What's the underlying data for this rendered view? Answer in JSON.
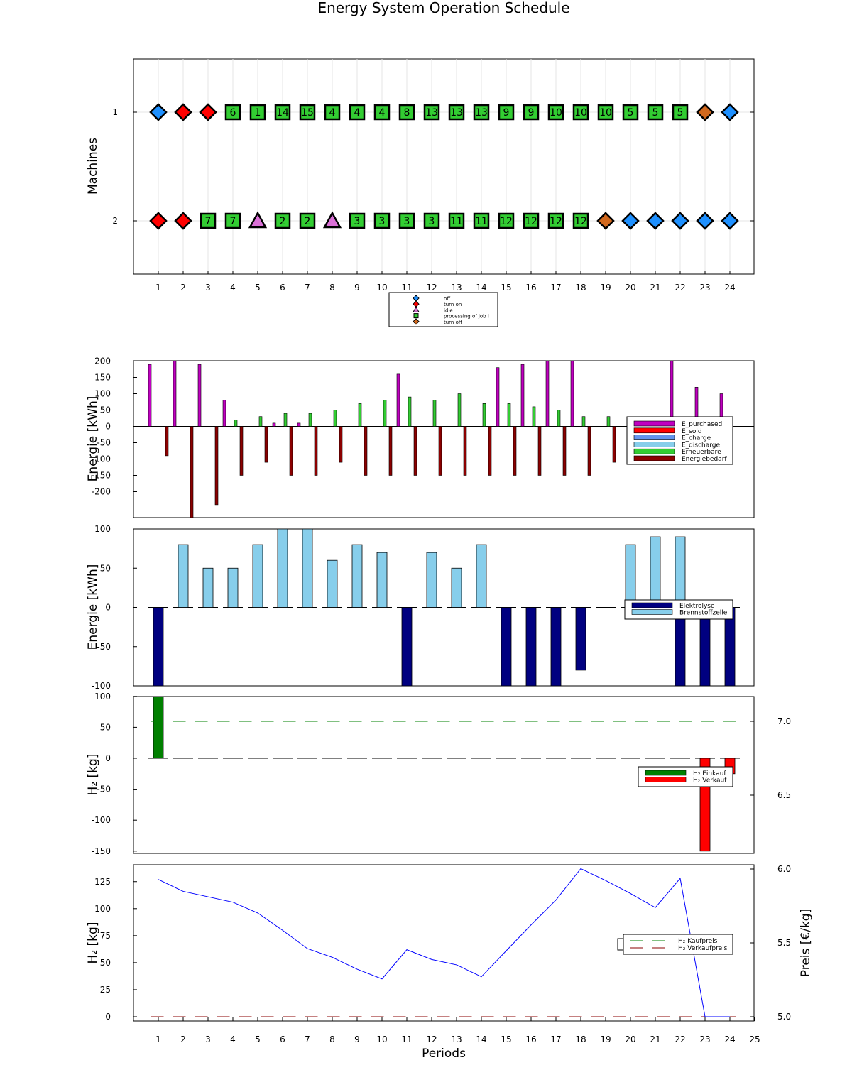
{
  "title": "Energy System Operation Schedule",
  "chart_data": [
    {
      "type": "scatter",
      "ylabel": "Machines",
      "x": [
        1,
        2,
        3,
        4,
        5,
        6,
        7,
        8,
        9,
        10,
        11,
        12,
        13,
        14,
        15,
        16,
        17,
        18,
        19,
        20,
        21,
        22,
        23,
        24
      ],
      "machines": [
        {
          "name": "1",
          "states": [
            "off",
            "on",
            "on",
            "p",
            "p",
            "p",
            "p",
            "p",
            "p",
            "p",
            "p",
            "p",
            "p",
            "p",
            "p",
            "p",
            "p",
            "p",
            "p",
            "p",
            "p",
            "p",
            "turnoff",
            "off"
          ],
          "jobs": [
            "",
            "",
            "",
            "6",
            "1",
            "14",
            "15",
            "4",
            "4",
            "4",
            "8",
            "13",
            "13",
            "13",
            "9",
            "9",
            "10",
            "10",
            "10",
            "5",
            "5",
            "5",
            "",
            ""
          ]
        },
        {
          "name": "2",
          "states": [
            "on",
            "on",
            "p",
            "p",
            "idle",
            "p",
            "p",
            "idle",
            "p",
            "p",
            "p",
            "p",
            "p",
            "p",
            "p",
            "p",
            "p",
            "p",
            "turnoff",
            "off",
            "off",
            "off",
            "off",
            "off"
          ],
          "jobs": [
            "",
            "",
            "7",
            "7",
            "",
            "2",
            "2",
            "",
            "3",
            "3",
            "3",
            "3",
            "11",
            "11",
            "12",
            "12",
            "12",
            "12",
            "",
            "",
            "",
            "",
            "",
            ""
          ]
        }
      ],
      "legend": [
        {
          "key": "off",
          "label": "off",
          "color": "#1e90ff",
          "shape": "diamond"
        },
        {
          "key": "on",
          "label": "turn on",
          "color": "#ff0000",
          "shape": "diamond"
        },
        {
          "key": "idle",
          "label": "idle",
          "color": "#da70d6",
          "shape": "triangle"
        },
        {
          "key": "p",
          "label": "processing of job i",
          "color": "#32cd32",
          "shape": "square"
        },
        {
          "key": "turnoff",
          "label": "turn off",
          "color": "#d2691e",
          "shape": "diamond"
        }
      ],
      "yticks": [
        "1",
        "2"
      ]
    },
    {
      "type": "bar",
      "ylabel": "Energie [kWh]",
      "ylim": [
        -280,
        200
      ],
      "yticks": [
        200,
        150,
        100,
        50,
        0,
        -50,
        -100,
        -150,
        -200
      ],
      "series": [
        {
          "name": "E_purchased",
          "color": "#c000c0",
          "values": [
            190,
            200,
            190,
            80,
            0,
            10,
            10,
            0,
            0,
            0,
            160,
            0,
            0,
            0,
            180,
            190,
            200,
            200,
            0,
            0,
            0,
            200,
            120,
            100
          ]
        },
        {
          "name": "E_sold",
          "color": "#ff0000",
          "values": [
            0,
            0,
            0,
            0,
            0,
            0,
            0,
            0,
            0,
            0,
            0,
            0,
            0,
            0,
            0,
            0,
            0,
            0,
            0,
            0,
            0,
            0,
            0,
            0
          ]
        },
        {
          "name": "E_charge",
          "color": "#6495ed",
          "values": [
            0,
            0,
            0,
            0,
            0,
            0,
            0,
            0,
            0,
            0,
            0,
            0,
            0,
            0,
            0,
            0,
            0,
            0,
            0,
            0,
            0,
            0,
            0,
            0
          ]
        },
        {
          "name": "E_discharge",
          "color": "#87ceeb",
          "values": [
            0,
            0,
            0,
            0,
            0,
            0,
            0,
            0,
            0,
            0,
            0,
            0,
            0,
            0,
            0,
            0,
            0,
            0,
            0,
            0,
            0,
            0,
            0,
            0
          ]
        },
        {
          "name": "Erneuerbare",
          "color": "#32cd32",
          "values": [
            0,
            0,
            0,
            20,
            30,
            40,
            40,
            50,
            70,
            80,
            90,
            80,
            100,
            70,
            70,
            60,
            50,
            30,
            30,
            0,
            0,
            0,
            0,
            0
          ]
        },
        {
          "name": "Energiebedarf",
          "color": "#8b0000",
          "values": [
            -90,
            -280,
            -240,
            -150,
            -110,
            -150,
            -150,
            -110,
            -150,
            -150,
            -150,
            -150,
            -150,
            -150,
            -150,
            -150,
            -150,
            -150,
            -110,
            0,
            0,
            0,
            0,
            0
          ]
        }
      ]
    },
    {
      "type": "bar",
      "ylabel": "Energie [kWh]",
      "ylim": [
        -100,
        100
      ],
      "yticks": [
        100,
        50,
        0,
        -50,
        -100
      ],
      "series": [
        {
          "name": "Elektrolyse",
          "color": "#000080",
          "values": [
            -100,
            0,
            0,
            0,
            0,
            0,
            0,
            0,
            0,
            0,
            -100,
            0,
            0,
            0,
            -100,
            -100,
            -100,
            -80,
            0,
            0,
            0,
            -100,
            -100,
            -100
          ]
        },
        {
          "name": "Brennstoffzelle",
          "color": "#87ceeb",
          "values": [
            0,
            80,
            50,
            50,
            80,
            100,
            100,
            60,
            80,
            70,
            0,
            70,
            50,
            80,
            0,
            0,
            0,
            0,
            0,
            80,
            90,
            90,
            0,
            0
          ]
        }
      ]
    },
    {
      "type": "bar",
      "ylabel": "H₂ [kg]",
      "ylim": [
        -150,
        100
      ],
      "yticks": [
        100,
        50,
        0,
        -50,
        -100,
        -150
      ],
      "series": [
        {
          "name": "H₂ Einkauf",
          "color": "#008000",
          "values": [
            100,
            0,
            0,
            0,
            0,
            0,
            0,
            0,
            0,
            0,
            0,
            0,
            0,
            0,
            0,
            0,
            0,
            0,
            0,
            0,
            0,
            0,
            0,
            0
          ]
        },
        {
          "name": "H₂ Verkauf",
          "color": "#ff0000",
          "values": [
            0,
            0,
            0,
            0,
            0,
            0,
            0,
            0,
            0,
            0,
            0,
            0,
            0,
            0,
            0,
            0,
            0,
            0,
            0,
            0,
            0,
            0,
            -150,
            -25
          ]
        }
      ]
    },
    {
      "type": "line",
      "xlabel": "Periods",
      "ylabel": "H₂ [kg]",
      "y2label": "Preis [€/kg]",
      "ylim": [
        -5,
        140
      ],
      "yticks": [
        125,
        100,
        75,
        50,
        25,
        0
      ],
      "y2lim": [
        4.952,
        7.06
      ],
      "y2ticks": [
        7.0,
        6.5,
        6.0,
        5.5,
        5.0
      ],
      "y2tick_labels": [
        "7.0",
        "6.5",
        "6.0",
        "5.5",
        "5.0"
      ],
      "xticks": [
        1,
        2,
        3,
        4,
        5,
        6,
        7,
        8,
        9,
        10,
        11,
        12,
        13,
        14,
        15,
        16,
        17,
        18,
        19,
        20,
        21,
        22,
        23,
        24,
        25
      ],
      "storage": {
        "x": [
          1,
          2,
          3,
          4,
          5,
          6,
          7,
          8,
          9,
          10,
          11,
          12,
          13,
          14,
          15,
          16,
          17,
          18,
          19,
          20,
          21,
          22,
          23,
          24
        ],
        "values": [
          127,
          116,
          111,
          106,
          96,
          80,
          63,
          55,
          44,
          35,
          62,
          53,
          48,
          37,
          61,
          85,
          108,
          137,
          126,
          114,
          101,
          128,
          0,
          0
        ],
        "color": "#0000ff"
      },
      "price_lines": [
        {
          "name": "H₂ Kaufpreis",
          "value": 7.0,
          "color": "#008000"
        },
        {
          "name": "H₂ Verkaufpreis",
          "value": 5.0,
          "color": "#8b0000"
        }
      ]
    }
  ]
}
